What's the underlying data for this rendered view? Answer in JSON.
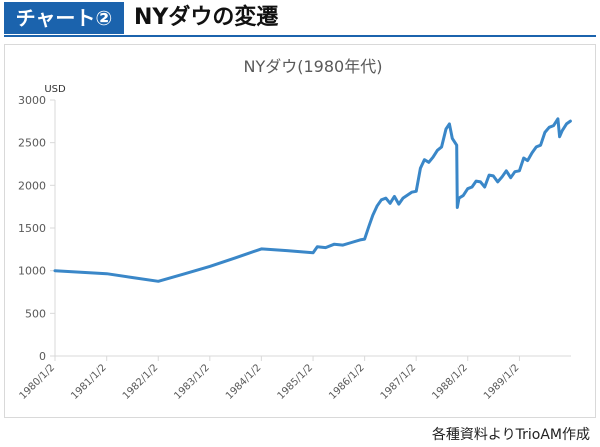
{
  "header": {
    "badge": "チャート②",
    "title": "NYダウの変遷"
  },
  "source": "各種資料よりTrioAM作成",
  "colors": {
    "header_bg": "#1b63ad",
    "series": "#3a87c8",
    "grid": "#d9d9d9"
  },
  "chart_data": {
    "type": "line",
    "title": "NYダウ(1980年代)",
    "ylabel": "USD",
    "xlabel": "",
    "ylim": [
      0,
      3000
    ],
    "yticks": [
      0,
      500,
      1000,
      1500,
      2000,
      2500,
      3000
    ],
    "xlim": [
      "1980/1/2",
      "1990/1/2"
    ],
    "xticks": [
      "1980/1/2",
      "1981/1/2",
      "1982/1/2",
      "1983/1/2",
      "1984/1/2",
      "1985/1/2",
      "1986/1/2",
      "1987/1/2",
      "1988/1/2",
      "1989/1/2"
    ],
    "grid": false,
    "legend": "none",
    "series": [
      {
        "points": [
          [
            "1980/1/2",
            1000
          ],
          [
            "1981/1/2",
            965
          ],
          [
            "1981/7/1",
            920
          ],
          [
            "1982/1/2",
            875
          ],
          [
            "1982/7/1",
            960
          ],
          [
            "1983/1/2",
            1050
          ],
          [
            "1983/7/1",
            1150
          ],
          [
            "1984/1/2",
            1255
          ],
          [
            "1984/7/1",
            1235
          ],
          [
            "1985/1/2",
            1210
          ],
          [
            "1985/2/1",
            1280
          ],
          [
            "1985/4/1",
            1270
          ],
          [
            "1985/6/1",
            1310
          ],
          [
            "1985/8/1",
            1300
          ],
          [
            "1985/10/1",
            1330
          ],
          [
            "1985/12/1",
            1360
          ],
          [
            "1986/1/2",
            1370
          ],
          [
            "1986/2/1",
            1520
          ],
          [
            "1986/3/1",
            1650
          ],
          [
            "1986/4/1",
            1760
          ],
          [
            "1986/5/1",
            1830
          ],
          [
            "1986/6/1",
            1850
          ],
          [
            "1986/7/1",
            1790
          ],
          [
            "1986/8/1",
            1870
          ],
          [
            "1986/9/1",
            1780
          ],
          [
            "1986/10/1",
            1850
          ],
          [
            "1986/12/1",
            1920
          ],
          [
            "1987/1/2",
            1930
          ],
          [
            "1987/2/1",
            2200
          ],
          [
            "1987/3/1",
            2300
          ],
          [
            "1987/4/1",
            2270
          ],
          [
            "1987/5/1",
            2330
          ],
          [
            "1987/6/1",
            2410
          ],
          [
            "1987/7/1",
            2450
          ],
          [
            "1987/8/1",
            2660
          ],
          [
            "1987/8/25",
            2720
          ],
          [
            "1987/9/15",
            2550
          ],
          [
            "1987/10/16",
            2470
          ],
          [
            "1987/10/20",
            1740
          ],
          [
            "1987/11/1",
            1850
          ],
          [
            "1987/12/1",
            1880
          ],
          [
            "1988/1/2",
            1960
          ],
          [
            "1988/2/1",
            1980
          ],
          [
            "1988/3/1",
            2050
          ],
          [
            "1988/4/1",
            2040
          ],
          [
            "1988/5/1",
            1980
          ],
          [
            "1988/6/1",
            2120
          ],
          [
            "1988/7/1",
            2110
          ],
          [
            "1988/8/1",
            2040
          ],
          [
            "1988/9/1",
            2100
          ],
          [
            "1988/10/1",
            2170
          ],
          [
            "1988/11/1",
            2090
          ],
          [
            "1988/12/1",
            2160
          ],
          [
            "1989/1/2",
            2170
          ],
          [
            "1989/2/1",
            2320
          ],
          [
            "1989/3/1",
            2290
          ],
          [
            "1989/4/1",
            2380
          ],
          [
            "1989/5/1",
            2450
          ],
          [
            "1989/6/1",
            2470
          ],
          [
            "1989/7/1",
            2620
          ],
          [
            "1989/8/1",
            2680
          ],
          [
            "1989/9/1",
            2700
          ],
          [
            "1989/10/1",
            2780
          ],
          [
            "1989/10/13",
            2570
          ],
          [
            "1989/11/1",
            2640
          ],
          [
            "1989/12/1",
            2720
          ],
          [
            "1989/12/29",
            2753
          ]
        ]
      }
    ]
  }
}
